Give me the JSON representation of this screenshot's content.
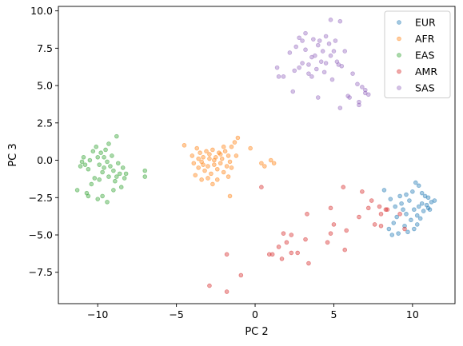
{
  "chart_data": {
    "type": "scatter",
    "title": "",
    "xlabel": "PC 2",
    "ylabel": "PC 3",
    "xlim": [
      -12.5,
      12.7
    ],
    "ylim": [
      -9.6,
      10.3
    ],
    "xticks": [
      -10,
      -5,
      0,
      5,
      10
    ],
    "yticks": [
      -7.5,
      -5.0,
      -2.5,
      0.0,
      2.5,
      5.0,
      7.5,
      10.0
    ],
    "ytick_labels": [
      "−7.5",
      "−5.0",
      "−2.5",
      "0.0",
      "2.5",
      "5.0",
      "7.5",
      "10.0"
    ],
    "xtick_labels": [
      "−10",
      "−5",
      "0",
      "5",
      "10"
    ],
    "grid": false,
    "legend_position": "top-right",
    "alpha": 0.4,
    "series": [
      {
        "name": "EUR",
        "color": "#1f77b4",
        "points": [
          [
            8.2,
            -2.0
          ],
          [
            8.6,
            -2.6
          ],
          [
            8.9,
            -3.1
          ],
          [
            9.3,
            -2.9
          ],
          [
            9.6,
            -2.3
          ],
          [
            9.8,
            -2.7
          ],
          [
            10.0,
            -2.1
          ],
          [
            10.2,
            -1.5
          ],
          [
            10.4,
            -1.7
          ],
          [
            10.6,
            -2.2
          ],
          [
            10.8,
            -2.4
          ],
          [
            11.0,
            -2.5
          ],
          [
            11.2,
            -2.8
          ],
          [
            11.4,
            -2.7
          ],
          [
            10.1,
            -3.3
          ],
          [
            10.4,
            -3.1
          ],
          [
            10.7,
            -3.4
          ],
          [
            11.0,
            -3.2
          ],
          [
            9.6,
            -3.6
          ],
          [
            9.9,
            -4.0
          ],
          [
            10.3,
            -4.3
          ],
          [
            10.5,
            -3.9
          ],
          [
            9.0,
            -3.8
          ],
          [
            8.8,
            -4.2
          ],
          [
            8.5,
            -4.6
          ],
          [
            8.7,
            -5.0
          ],
          [
            9.1,
            -4.9
          ],
          [
            9.5,
            -4.4
          ],
          [
            9.7,
            -4.8
          ],
          [
            10.1,
            -4.6
          ],
          [
            10.3,
            -3.7
          ],
          [
            9.4,
            -3.3
          ],
          [
            10.9,
            -3.0
          ],
          [
            11.1,
            -3.3
          ],
          [
            9.2,
            -2.4
          ],
          [
            10.6,
            -2.9
          ]
        ]
      },
      {
        "name": "AFR",
        "color": "#ff7f0e",
        "points": [
          [
            -4.5,
            1.0
          ],
          [
            -4.0,
            0.3
          ],
          [
            -3.7,
            0.8
          ],
          [
            -3.5,
            0.5
          ],
          [
            -3.3,
            0.2
          ],
          [
            -3.1,
            0.6
          ],
          [
            -2.9,
            0.4
          ],
          [
            -2.7,
            0.7
          ],
          [
            -2.5,
            0.2
          ],
          [
            -2.3,
            0.5
          ],
          [
            -2.1,
            0.1
          ],
          [
            -1.9,
            0.6
          ],
          [
            -1.7,
            0.3
          ],
          [
            -1.5,
            0.9
          ],
          [
            -1.3,
            1.2
          ],
          [
            -1.1,
            1.5
          ],
          [
            -3.9,
            -0.2
          ],
          [
            -3.6,
            -0.5
          ],
          [
            -3.4,
            -0.1
          ],
          [
            -3.2,
            -0.7
          ],
          [
            -3.0,
            -0.4
          ],
          [
            -2.8,
            -0.9
          ],
          [
            -2.6,
            -0.3
          ],
          [
            -2.4,
            -0.6
          ],
          [
            -2.2,
            -0.2
          ],
          [
            -2.0,
            -0.8
          ],
          [
            -1.8,
            -0.4
          ],
          [
            -1.6,
            -0.1
          ],
          [
            -3.8,
            -1.0
          ],
          [
            -3.4,
            -1.3
          ],
          [
            -3.0,
            -1.2
          ],
          [
            -2.7,
            -1.6
          ],
          [
            -2.4,
            -1.3
          ],
          [
            -1.7,
            -1.1
          ],
          [
            -1.5,
            -0.5
          ],
          [
            -2.9,
            0.1
          ],
          [
            -2.6,
            0.0
          ],
          [
            -3.6,
            0.1
          ],
          [
            -1.2,
            0.3
          ],
          [
            -2.0,
            0.9
          ],
          [
            -1.6,
            -2.4
          ],
          [
            0.4,
            -0.2
          ],
          [
            0.6,
            -0.4
          ],
          [
            -0.3,
            0.8
          ],
          [
            1.2,
            -0.2
          ],
          [
            1.0,
            0.0
          ],
          [
            -2.2,
            0.4
          ],
          [
            -3.3,
            -0.3
          ]
        ]
      },
      {
        "name": "EAS",
        "color": "#2ca02c",
        "points": [
          [
            -11.3,
            -2.0
          ],
          [
            -11.0,
            -0.1
          ],
          [
            -10.9,
            0.2
          ],
          [
            -10.8,
            -0.3
          ],
          [
            -10.6,
            -0.6
          ],
          [
            -10.5,
            0.0
          ],
          [
            -10.3,
            0.6
          ],
          [
            -10.1,
            0.9
          ],
          [
            -10.0,
            0.2
          ],
          [
            -9.9,
            -0.3
          ],
          [
            -9.8,
            0.5
          ],
          [
            -9.7,
            -0.8
          ],
          [
            -9.6,
            -0.5
          ],
          [
            -9.5,
            0.7
          ],
          [
            -9.4,
            -0.1
          ],
          [
            -9.3,
            -1.1
          ],
          [
            -9.2,
            -0.4
          ],
          [
            -9.1,
            0.3
          ],
          [
            -9.0,
            -0.7
          ],
          [
            -8.9,
            -1.4
          ],
          [
            -8.8,
            1.6
          ],
          [
            -8.7,
            -0.2
          ],
          [
            -8.6,
            -0.9
          ],
          [
            -8.5,
            -1.8
          ],
          [
            -8.4,
            -0.5
          ],
          [
            -8.3,
            -1.2
          ],
          [
            -8.2,
            -0.9
          ],
          [
            -9.3,
            1.1
          ],
          [
            -10.2,
            -1.2
          ],
          [
            -10.4,
            -1.6
          ],
          [
            -10.0,
            -2.6
          ],
          [
            -9.7,
            -2.4
          ],
          [
            -9.4,
            -2.8
          ],
          [
            -10.7,
            -2.2
          ],
          [
            -9.0,
            -2.0
          ],
          [
            -8.8,
            -1.1
          ],
          [
            -7.0,
            -0.7
          ],
          [
            -7.0,
            -1.1
          ],
          [
            -10.6,
            -2.4
          ],
          [
            -9.9,
            -1.3
          ],
          [
            -11.1,
            -0.4
          ],
          [
            -9.6,
            0.2
          ]
        ]
      },
      {
        "name": "AMR",
        "color": "#d62728",
        "points": [
          [
            -2.9,
            -8.4
          ],
          [
            -1.8,
            -8.8
          ],
          [
            -1.8,
            -6.3
          ],
          [
            -0.9,
            -7.7
          ],
          [
            0.4,
            -1.8
          ],
          [
            0.9,
            -6.3
          ],
          [
            1.1,
            -6.3
          ],
          [
            1.5,
            -5.8
          ],
          [
            1.7,
            -6.6
          ],
          [
            1.8,
            -4.9
          ],
          [
            2.0,
            -5.5
          ],
          [
            2.3,
            -6.2
          ],
          [
            2.7,
            -6.2
          ],
          [
            3.2,
            -5.3
          ],
          [
            3.3,
            -3.6
          ],
          [
            3.4,
            -6.9
          ],
          [
            4.6,
            -5.5
          ],
          [
            4.8,
            -3.2
          ],
          [
            4.8,
            -4.9
          ],
          [
            5.0,
            -4.3
          ],
          [
            5.6,
            -1.8
          ],
          [
            5.7,
            -6.0
          ],
          [
            5.8,
            -4.7
          ],
          [
            6.6,
            -3.8
          ],
          [
            6.8,
            -2.1
          ],
          [
            7.6,
            -4.3
          ],
          [
            7.4,
            -2.7
          ],
          [
            7.9,
            -3.1
          ],
          [
            8.0,
            -3.6
          ],
          [
            8.3,
            -3.3
          ],
          [
            8.4,
            -3.3
          ],
          [
            8.0,
            -4.4
          ],
          [
            9.2,
            -3.6
          ],
          [
            9.5,
            -4.6
          ],
          [
            7.2,
            -3.2
          ],
          [
            2.3,
            -5.0
          ]
        ]
      },
      {
        "name": "SAS",
        "color": "#9467bd",
        "points": [
          [
            1.4,
            6.2
          ],
          [
            1.5,
            5.6
          ],
          [
            1.8,
            5.6
          ],
          [
            2.2,
            7.2
          ],
          [
            2.4,
            4.6
          ],
          [
            2.5,
            6.0
          ],
          [
            2.6,
            7.6
          ],
          [
            2.8,
            6.2
          ],
          [
            2.8,
            8.2
          ],
          [
            3.0,
            8.0
          ],
          [
            3.0,
            6.5
          ],
          [
            3.2,
            7.4
          ],
          [
            3.2,
            8.5
          ],
          [
            3.4,
            6.4
          ],
          [
            3.4,
            5.8
          ],
          [
            3.6,
            6.9
          ],
          [
            3.6,
            5.6
          ],
          [
            3.7,
            8.1
          ],
          [
            3.8,
            7.0
          ],
          [
            3.9,
            6.1
          ],
          [
            4.0,
            7.7
          ],
          [
            4.1,
            8.0
          ],
          [
            4.2,
            6.6
          ],
          [
            4.3,
            7.3
          ],
          [
            4.4,
            5.9
          ],
          [
            4.5,
            8.3
          ],
          [
            4.5,
            6.5
          ],
          [
            4.7,
            7.8
          ],
          [
            4.8,
            7.0
          ],
          [
            4.8,
            9.4
          ],
          [
            4.9,
            5.4
          ],
          [
            5.0,
            7.3
          ],
          [
            5.1,
            8.0
          ],
          [
            5.2,
            6.6
          ],
          [
            5.3,
            6.4
          ],
          [
            5.4,
            9.3
          ],
          [
            5.5,
            6.3
          ],
          [
            5.7,
            7.3
          ],
          [
            5.9,
            4.3
          ],
          [
            6.0,
            4.2
          ],
          [
            6.2,
            5.8
          ],
          [
            6.5,
            5.1
          ],
          [
            6.6,
            3.9
          ],
          [
            6.6,
            3.7
          ],
          [
            6.8,
            4.9
          ],
          [
            7.0,
            4.7
          ],
          [
            7.0,
            4.5
          ],
          [
            7.2,
            4.4
          ],
          [
            4.0,
            4.2
          ],
          [
            5.4,
            3.5
          ]
        ]
      }
    ]
  }
}
